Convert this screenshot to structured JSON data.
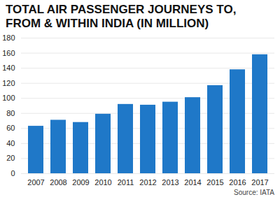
{
  "chart_data": {
    "type": "bar",
    "title": "TOTAL AIR PASSENGER JOURNEYS TO, FROM & WITHIN INDIA (IN MILLION)",
    "caption": "Source: IATA",
    "categories": [
      "2007",
      "2008",
      "2009",
      "2010",
      "2011",
      "2012",
      "2013",
      "2014",
      "2015",
      "2016",
      "2017"
    ],
    "values": [
      63,
      71,
      68,
      79,
      92,
      91,
      95,
      101,
      117,
      138,
      158
    ],
    "color": "#1f78c8",
    "ylim": [
      0,
      180
    ],
    "yticks": [
      0,
      20,
      40,
      60,
      80,
      100,
      120,
      140,
      160,
      180
    ],
    "grid": true
  }
}
